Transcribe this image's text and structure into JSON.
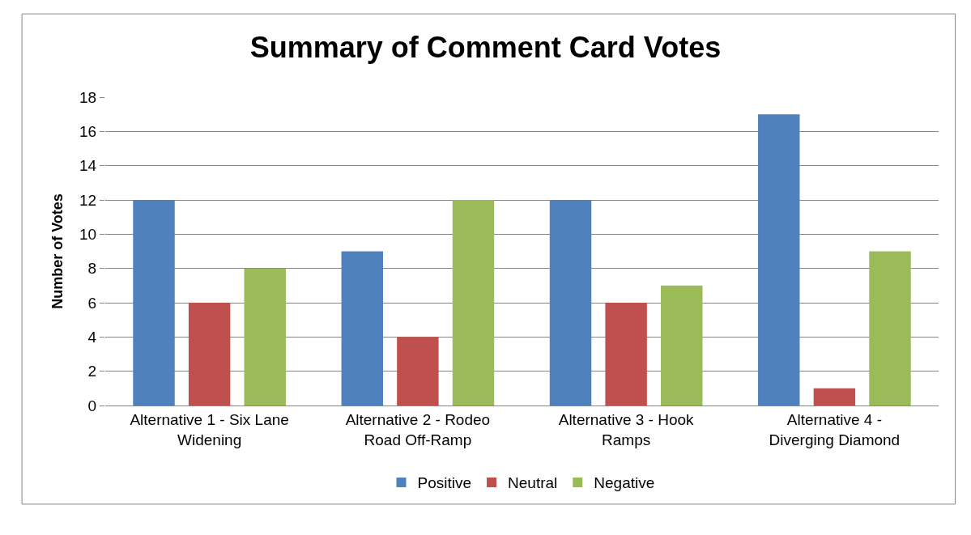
{
  "chart_data": {
    "type": "bar",
    "title": "Summary of Comment Card Votes",
    "ylabel": "Number of Votes",
    "categories": [
      "Alternative 1 - Six Lane Widening",
      "Alternative 2 - Rodeo Road Off-Ramp",
      "Alternative 3 - Hook Ramps",
      "Alternative 4 - Diverging Diamond"
    ],
    "series": [
      {
        "name": "Positive",
        "color": "#4f81bd",
        "values": [
          12,
          9,
          12,
          17
        ]
      },
      {
        "name": "Neutral",
        "color": "#c0504d",
        "values": [
          6,
          4,
          6,
          1
        ]
      },
      {
        "name": "Negative",
        "color": "#9bbb59",
        "values": [
          8,
          12,
          7,
          9
        ]
      }
    ],
    "ylim": [
      0,
      18
    ],
    "yticks": [
      0,
      2,
      4,
      6,
      8,
      10,
      12,
      14,
      16,
      18
    ],
    "grid": "y",
    "legend": "bottom"
  }
}
